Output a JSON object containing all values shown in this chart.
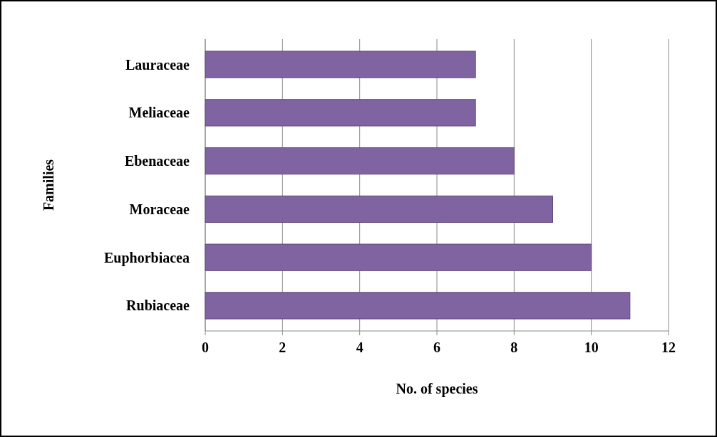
{
  "chart_data": {
    "type": "bar",
    "orientation": "horizontal",
    "xlabel": "No. of species",
    "ylabel": "Families",
    "categories": [
      "Lauraceae",
      "Meliaceae",
      "Ebenaceae",
      "Moraceae",
      "Euphorbiacea",
      "Rubiaceae"
    ],
    "values": [
      7,
      7,
      8,
      9,
      10,
      11
    ],
    "color": "#8064a2",
    "xlim": [
      0,
      12
    ],
    "xticks": [
      0,
      2,
      4,
      6,
      8,
      10,
      12
    ],
    "grid": "x"
  }
}
